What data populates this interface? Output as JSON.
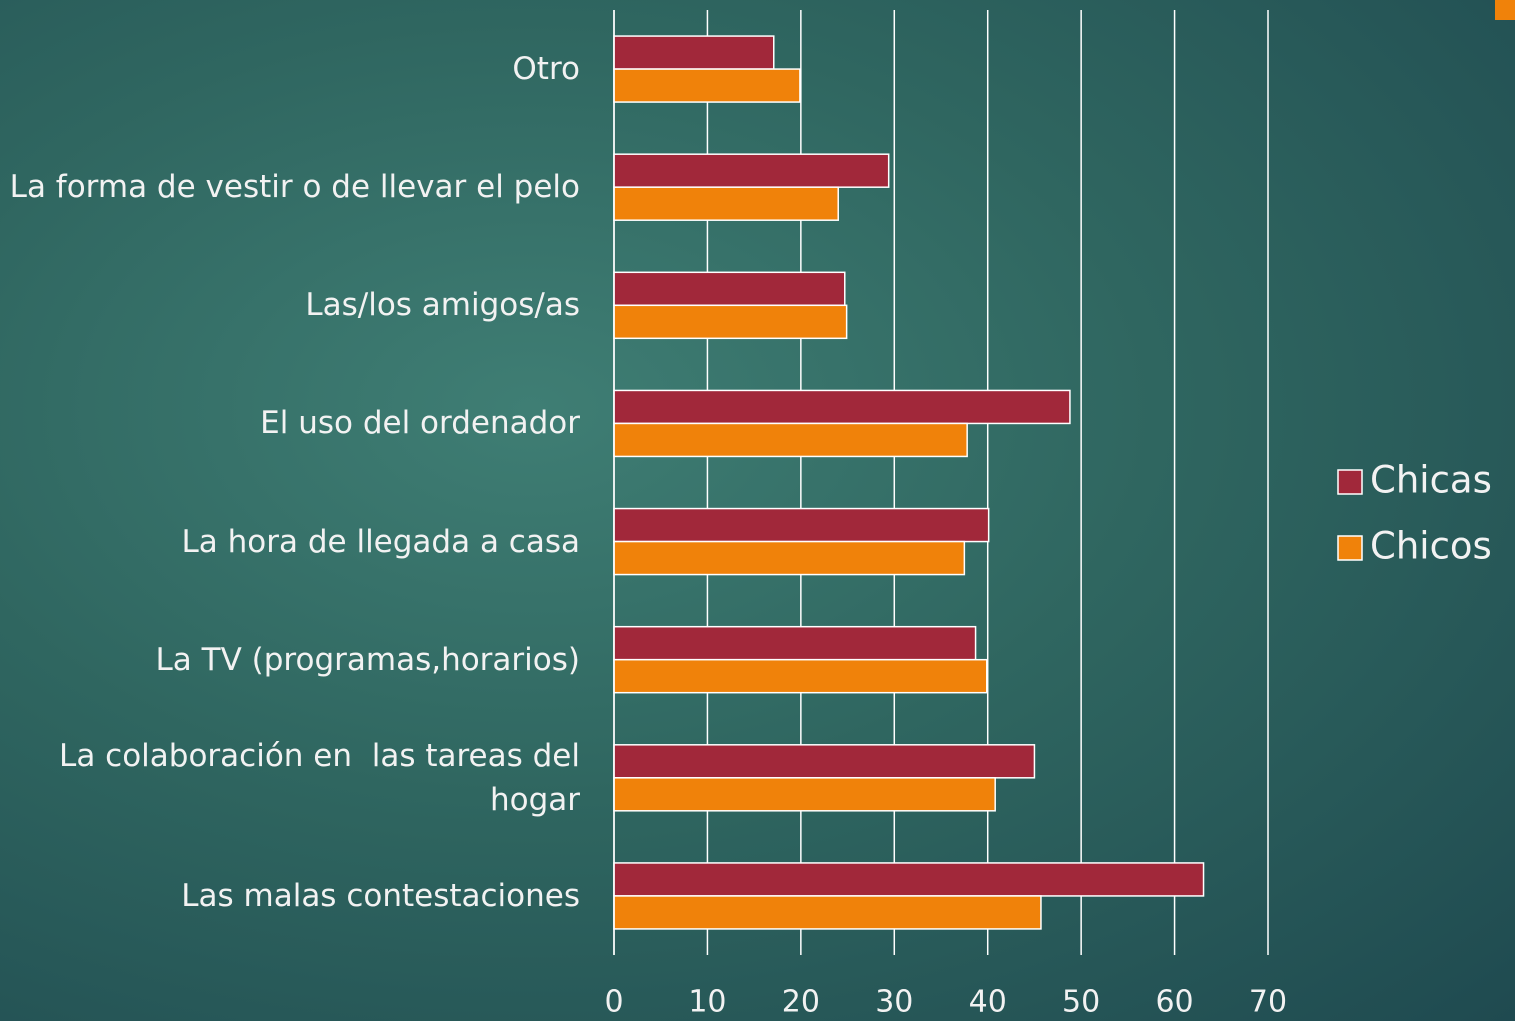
{
  "chart_data": {
    "type": "bar",
    "orientation": "horizontal",
    "categories": [
      "Otro",
      "La forma de vestir o de llevar el pelo",
      "Las/los amigos/as",
      "El uso del ordenador",
      "La hora de llegada a casa",
      "La TV (programas,horarios)",
      "La colaboración en  las tareas del hogar",
      "Las malas contestaciones"
    ],
    "series": [
      {
        "name": "Chicas",
        "color": "#a1283a",
        "values": [
          17.1,
          29.4,
          24.7,
          48.8,
          40.1,
          38.7,
          45,
          63.1
        ]
      },
      {
        "name": "Chicos",
        "color": "#f0820a",
        "values": [
          19.9,
          24,
          24.9,
          37.8,
          37.5,
          39.9,
          40.8,
          45.7
        ]
      }
    ],
    "xlim": [
      0,
      70
    ],
    "xticks": [
      0,
      10,
      20,
      30,
      40,
      50,
      60,
      70
    ],
    "grid": true
  }
}
